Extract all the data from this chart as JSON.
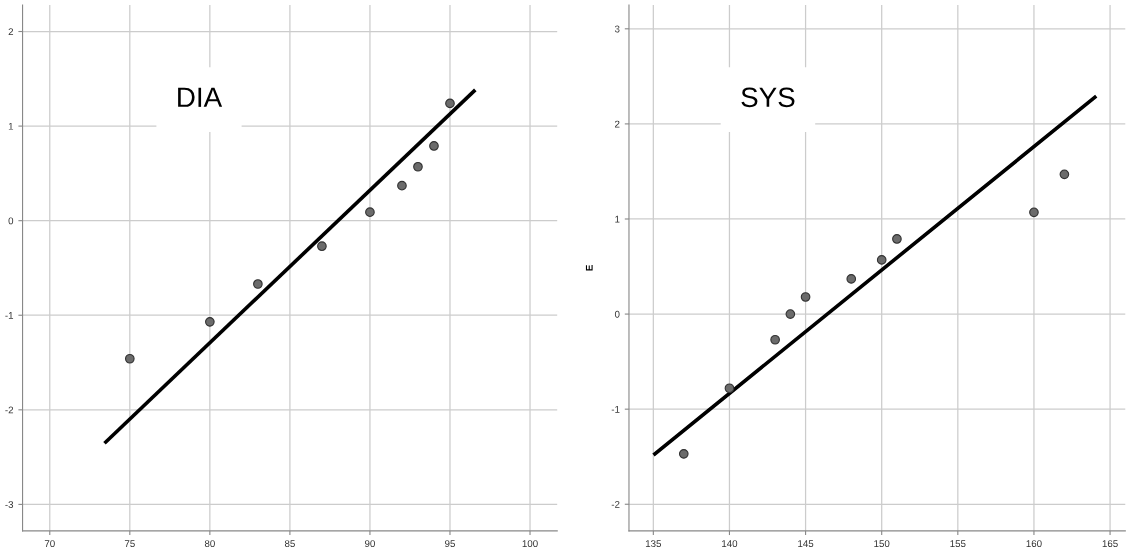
{
  "chart_data": [
    {
      "type": "scatter",
      "title": "DIA",
      "xlim": [
        68.3,
        101.7
      ],
      "xticks": [
        70,
        75,
        80,
        85,
        90,
        95,
        100
      ],
      "ylim": [
        -3.28,
        2.28
      ],
      "yticks": [
        -3,
        -2,
        -1,
        0,
        1,
        2
      ],
      "grid": true,
      "series": [
        {
          "color": "#6b6b6b",
          "marker": "circle",
          "x": [
            75,
            80,
            83,
            87,
            90,
            92,
            93,
            94,
            95
          ],
          "values": [
            -1.46,
            -1.07,
            -0.67,
            -0.27,
            0.09,
            0.37,
            0.57,
            0.79,
            1.24
          ]
        },
        {
          "type": "line",
          "color": "#000000",
          "x": [
            73.5,
            96.5
          ],
          "values": [
            -2.34,
            1.37
          ]
        }
      ]
    },
    {
      "type": "scatter",
      "title": "SYS",
      "ylabel": "E",
      "xlim": [
        133.4,
        166
      ],
      "xticks": [
        135,
        140,
        145,
        150,
        155,
        160,
        165
      ],
      "ylim": [
        -2.28,
        3.25
      ],
      "yticks": [
        -2,
        -1,
        0,
        1,
        2,
        3
      ],
      "grid": true,
      "series": [
        {
          "color": "#6b6b6b",
          "marker": "circle",
          "x": [
            137,
            140,
            143,
            144,
            145,
            148,
            150,
            151,
            160,
            162
          ],
          "values": [
            -1.47,
            -0.78,
            -0.27,
            0.0,
            0.18,
            0.37,
            0.57,
            0.79,
            1.07,
            1.47
          ]
        },
        {
          "type": "line",
          "color": "#000000",
          "x": [
            135.1,
            164
          ],
          "values": [
            -1.47,
            2.28
          ]
        }
      ]
    }
  ]
}
